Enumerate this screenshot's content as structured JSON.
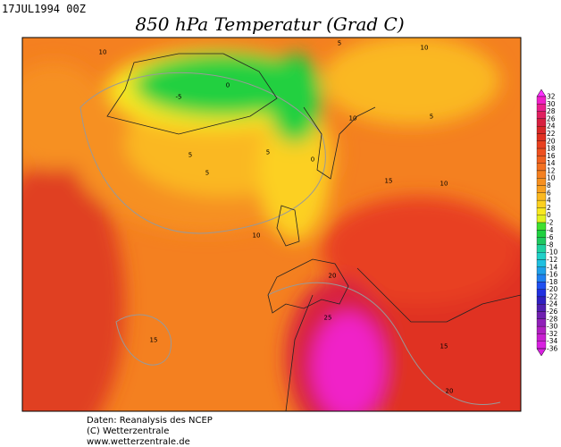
{
  "header": {
    "timestamp": "17JUL1994 00Z",
    "title": "850 hPa Temperatur (Grad C)"
  },
  "colorbar": {
    "labels": [
      "32",
      "30",
      "28",
      "26",
      "24",
      "22",
      "20",
      "18",
      "16",
      "14",
      "12",
      "10",
      "8",
      "6",
      "4",
      "2",
      "0",
      "-2",
      "-4",
      "-6",
      "-8",
      "-10",
      "-12",
      "-14",
      "-16",
      "-18",
      "-20",
      "-22",
      "-24",
      "-26",
      "-28",
      "-30",
      "-32",
      "-34",
      "-36"
    ],
    "colors": [
      "#ff30ff",
      "#f020c8",
      "#e8208c",
      "#e02060",
      "#d82040",
      "#d82828",
      "#e03020",
      "#e84020",
      "#ee5020",
      "#f06020",
      "#f27020",
      "#f48020",
      "#f69020",
      "#f8a020",
      "#fab820",
      "#fcd020",
      "#f8e820",
      "#e0f020",
      "#40e030",
      "#20d040",
      "#20c860",
      "#20d0a0",
      "#20d0c8",
      "#20c0e0",
      "#20a0e8",
      "#2080f0",
      "#2050f0",
      "#2030e0",
      "#3020c0",
      "#5020b0",
      "#7020b0",
      "#9020b8",
      "#b020c0",
      "#c820d0",
      "#d820e0"
    ]
  },
  "map": {
    "contour_labels": [
      "10",
      "-5",
      "0",
      "5",
      "10",
      "5",
      "5",
      "5",
      "5",
      "0",
      "10",
      "15",
      "10",
      "10",
      "20",
      "25",
      "15",
      "15",
      "20"
    ]
  },
  "footer": {
    "lines": [
      "Daten: Reanalysis des NCEP",
      "(C) Wetterzentrale",
      "www.wetterzentrale.de"
    ]
  }
}
